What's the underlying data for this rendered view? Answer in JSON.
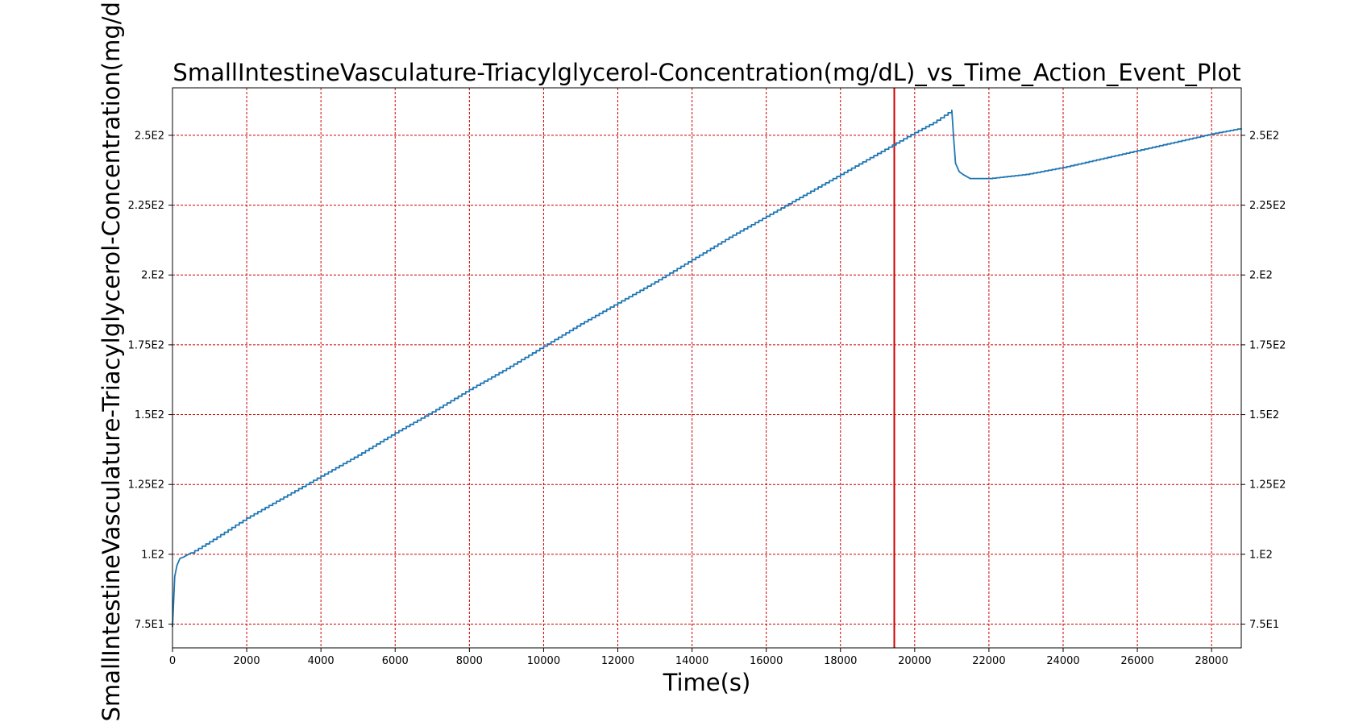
{
  "chart_data": {
    "type": "line",
    "title": "SmallIntestineVasculature-Triacylglycerol-Concentration(mg/dL)_vs_Time_Action_Event_Plot",
    "xlabel": "Time(s)",
    "ylabel": "SmallIntestineVasculature-Triacylglycerol-Concentration(mg/dL)",
    "xlim": [
      0,
      28800
    ],
    "ylim": [
      66.5,
      267
    ],
    "grid": true,
    "grid_color": "#cc0000",
    "line_color": "#1f77b4",
    "event_line_color": "#cc0000",
    "x_ticks": [
      0,
      2000,
      4000,
      6000,
      8000,
      10000,
      12000,
      14000,
      16000,
      18000,
      20000,
      22000,
      24000,
      26000,
      28000
    ],
    "x_tick_labels": [
      "0",
      "2000",
      "4000",
      "6000",
      "8000",
      "10000",
      "12000",
      "14000",
      "16000",
      "18000",
      "20000",
      "22000",
      "24000",
      "26000",
      "28000"
    ],
    "y_ticks": [
      75,
      100,
      125,
      150,
      175,
      200,
      225,
      250
    ],
    "y_tick_labels": [
      "7.5E1",
      "1.E2",
      "1.25E2",
      "1.5E2",
      "1.75E2",
      "2.E2",
      "2.25E2",
      "2.5E2"
    ],
    "event_lines": [
      19450
    ],
    "series": [
      {
        "x": [
          0,
          60,
          120,
          200,
          300,
          500,
          1000,
          2000,
          3000,
          4000,
          5000,
          6000,
          7000,
          8000,
          9000,
          10000,
          11000,
          12000,
          13000,
          14000,
          15000,
          16000,
          17000,
          18000,
          19000,
          20000,
          20500,
          21000,
          21050,
          21100,
          21200,
          21300,
          21500,
          22000,
          23000,
          24000,
          25000,
          26000,
          27000,
          28000,
          28800
        ],
        "y": [
          74,
          92,
          96,
          98.5,
          99,
          100.5,
          104.5,
          113,
          120.5,
          128,
          135.5,
          143.5,
          151,
          159,
          166.5,
          174.5,
          182.5,
          190,
          197.5,
          205.5,
          213.5,
          221,
          228.5,
          236,
          243.5,
          251,
          254.5,
          259,
          249,
          240,
          237,
          236,
          234.5,
          234.5,
          236,
          238.5,
          241.5,
          244.5,
          247.5,
          250.5,
          252.5
        ]
      }
    ]
  }
}
